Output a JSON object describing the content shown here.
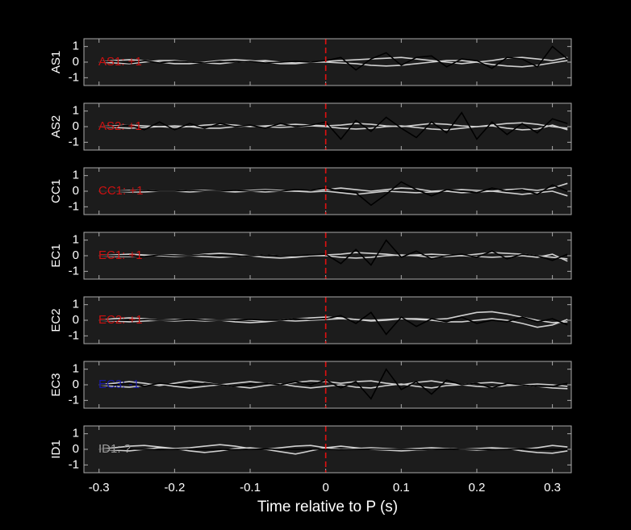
{
  "chart_data": [
    {
      "type": "line",
      "ylabel": "AS1",
      "annotation": "AS1: +1",
      "annotation_color": "#cc1111",
      "pick": 0,
      "x": [
        -0.3,
        -0.28,
        -0.26,
        -0.24,
        -0.22,
        -0.2,
        -0.18,
        -0.16,
        -0.14,
        -0.12,
        -0.1,
        -0.08,
        -0.06,
        -0.04,
        -0.02,
        0,
        0.02,
        0.04,
        0.06,
        0.08,
        0.1,
        0.12,
        0.14,
        0.16,
        0.18,
        0.2,
        0.22,
        0.24,
        0.26,
        0.28,
        0.3,
        0.32
      ],
      "xlim": [
        -0.32,
        0.325
      ],
      "xticks": [
        -0.3,
        -0.2,
        -0.1,
        0,
        0.1,
        0.2,
        0.3
      ],
      "ylim": [
        -1.5,
        1.5
      ],
      "yticks": [
        -1,
        0,
        1
      ],
      "series": [
        {
          "color": "#d0d0d0",
          "values": [
            0,
            0.1,
            0.15,
            0.1,
            0,
            -0.1,
            -0.1,
            0,
            0.1,
            0.15,
            0.1,
            0,
            -0.1,
            -0.1,
            0,
            0.05,
            0.1,
            0.15,
            0.2,
            0.25,
            0.3,
            0.2,
            0.1,
            0,
            -0.1,
            0,
            0.1,
            0.25,
            0.3,
            0.2,
            0.1,
            0.3
          ]
        },
        {
          "color": "#d0d0d0",
          "values": [
            0,
            -0.05,
            -0.1,
            0,
            0.1,
            0.1,
            0,
            -0.05,
            -0.1,
            0,
            0.05,
            0.1,
            0,
            -0.05,
            0,
            0,
            -0.05,
            -0.1,
            -0.2,
            -0.25,
            -0.2,
            -0.1,
            0,
            0.1,
            0.1,
            0,
            -0.15,
            -0.25,
            -0.3,
            -0.2,
            -0.05,
            0.1
          ]
        },
        {
          "color": "#000000",
          "values": [
            0,
            0.05,
            -0.05,
            0.1,
            -0.05,
            0.05,
            0,
            -0.05,
            0.05,
            0,
            0.05,
            -0.05,
            0,
            0.05,
            0,
            0.1,
            0.3,
            -0.5,
            0.2,
            0.6,
            -0.2,
            0.3,
            0.4,
            -0.3,
            0.2,
            0.1,
            -0.4,
            0.3,
            0.2,
            -0.3,
            1,
            0.2
          ]
        }
      ]
    },
    {
      "type": "line",
      "ylabel": "AS2",
      "annotation": "AS2: +1",
      "annotation_color": "#cc1111",
      "pick": 0,
      "x": [
        -0.3,
        -0.28,
        -0.26,
        -0.24,
        -0.22,
        -0.2,
        -0.18,
        -0.16,
        -0.14,
        -0.12,
        -0.1,
        -0.08,
        -0.06,
        -0.04,
        -0.02,
        0,
        0.02,
        0.04,
        0.06,
        0.08,
        0.1,
        0.12,
        0.14,
        0.16,
        0.18,
        0.2,
        0.22,
        0.24,
        0.26,
        0.28,
        0.3,
        0.32
      ],
      "xlim": [
        -0.32,
        0.325
      ],
      "xticks": [
        -0.3,
        -0.2,
        -0.1,
        0,
        0.1,
        0.2,
        0.3
      ],
      "ylim": [
        -1.5,
        1.5
      ],
      "yticks": [
        -1,
        0,
        1
      ],
      "series": [
        {
          "color": "#d0d0d0",
          "values": [
            0,
            0.05,
            0.1,
            0.05,
            0,
            -0.05,
            0,
            0.1,
            0.15,
            0.1,
            0,
            0.05,
            0.1,
            0.15,
            0.1,
            0.05,
            0.1,
            0.2,
            0.15,
            0.05,
            0,
            0.1,
            0.2,
            0.15,
            0.05,
            0,
            0.1,
            0.2,
            0.25,
            0.15,
            0,
            -0.1
          ]
        },
        {
          "color": "#d0d0d0",
          "values": [
            0,
            -0.05,
            -0.1,
            -0.05,
            0,
            0.05,
            0,
            -0.1,
            -0.1,
            0,
            0.05,
            0,
            -0.05,
            0,
            0.05,
            0,
            -0.1,
            -0.15,
            -0.1,
            0,
            0.05,
            -0.05,
            -0.15,
            -0.2,
            -0.1,
            0,
            0.05,
            -0.1,
            -0.2,
            -0.15,
            0.1,
            -0.2
          ]
        },
        {
          "color": "#000000",
          "values": [
            0,
            0,
            0.1,
            -0.2,
            0.3,
            -0.2,
            0.2,
            -0.1,
            0.2,
            0,
            0.1,
            -0.1,
            0.2,
            0,
            0.1,
            0.3,
            -0.8,
            0.4,
            -0.3,
            0.6,
            -0.1,
            -0.7,
            0.3,
            -0.4,
            0.9,
            -0.8,
            0.3,
            -0.5,
            0.2,
            -0.4,
            0.5,
            0.2
          ]
        }
      ]
    },
    {
      "type": "line",
      "ylabel": "CC1",
      "annotation": "CC1: +1",
      "annotation_color": "#cc1111",
      "pick": 0,
      "x": [
        -0.3,
        -0.28,
        -0.26,
        -0.24,
        -0.22,
        -0.2,
        -0.18,
        -0.16,
        -0.14,
        -0.12,
        -0.1,
        -0.08,
        -0.06,
        -0.04,
        -0.02,
        0,
        0.02,
        0.04,
        0.06,
        0.08,
        0.1,
        0.12,
        0.14,
        0.16,
        0.18,
        0.2,
        0.22,
        0.24,
        0.26,
        0.28,
        0.3,
        0.32
      ],
      "xlim": [
        -0.32,
        0.325
      ],
      "xticks": [
        -0.3,
        -0.2,
        -0.1,
        0,
        0.1,
        0.2,
        0.3
      ],
      "ylim": [
        -1.5,
        1.5
      ],
      "yticks": [
        -1,
        0,
        1
      ],
      "series": [
        {
          "color": "#d0d0d0",
          "values": [
            0,
            0,
            0.05,
            0.05,
            0,
            0,
            0.05,
            0.05,
            0,
            0,
            0.05,
            0.1,
            0.05,
            0,
            0.05,
            0.1,
            0.2,
            0.1,
            0,
            0.1,
            0.2,
            0.15,
            0,
            0.05,
            0.1,
            0.05,
            0,
            0.1,
            0.15,
            0.05,
            0.2,
            0.5
          ]
        },
        {
          "color": "#d0d0d0",
          "values": [
            0,
            0,
            -0.05,
            -0.05,
            0,
            0,
            -0.05,
            0,
            0,
            -0.05,
            0,
            -0.05,
            0,
            0,
            -0.05,
            0,
            -0.1,
            -0.2,
            -0.1,
            0,
            -0.05,
            -0.1,
            -0.05,
            0,
            -0.1,
            -0.05,
            0,
            -0.1,
            -0.2,
            -0.1,
            0,
            -0.3
          ]
        },
        {
          "color": "#000000",
          "values": [
            0,
            0,
            0,
            0.05,
            0,
            0,
            0.05,
            0,
            0,
            0.05,
            0,
            0.05,
            0,
            0.1,
            0.05,
            0.2,
            0,
            -0.1,
            -0.9,
            -0.2,
            0.6,
            0.1,
            -0.3,
            0.1,
            0,
            -0.1,
            0.2,
            0,
            0.1,
            -0.2,
            0.4,
            0
          ]
        }
      ]
    },
    {
      "type": "line",
      "ylabel": "EC1",
      "annotation": "EC1: +1",
      "annotation_color": "#cc1111",
      "pick": 0,
      "x": [
        -0.3,
        -0.28,
        -0.26,
        -0.24,
        -0.22,
        -0.2,
        -0.18,
        -0.16,
        -0.14,
        -0.12,
        -0.1,
        -0.08,
        -0.06,
        -0.04,
        -0.02,
        0,
        0.02,
        0.04,
        0.06,
        0.08,
        0.1,
        0.12,
        0.14,
        0.16,
        0.18,
        0.2,
        0.22,
        0.24,
        0.26,
        0.28,
        0.3,
        0.32
      ],
      "xlim": [
        -0.32,
        0.325
      ],
      "xticks": [
        -0.3,
        -0.2,
        -0.1,
        0,
        0.1,
        0.2,
        0.3
      ],
      "ylim": [
        -1.5,
        1.5
      ],
      "yticks": [
        -1,
        0,
        1
      ],
      "series": [
        {
          "color": "#d0d0d0",
          "values": [
            0,
            0.05,
            0.1,
            0.05,
            0,
            -0.05,
            0,
            0.1,
            0.15,
            0.1,
            0,
            -0.1,
            -0.15,
            -0.1,
            0,
            0.05,
            0.1,
            0.2,
            0.15,
            0.1,
            0,
            0.05,
            0.1,
            0.05,
            0,
            0.1,
            0.2,
            0.15,
            0.1,
            0,
            -0.1,
            -0.2
          ]
        },
        {
          "color": "#d0d0d0",
          "values": [
            0,
            -0.05,
            -0.05,
            0,
            0.05,
            0.05,
            0,
            -0.05,
            -0.1,
            -0.05,
            0,
            0.05,
            0,
            -0.05,
            0,
            0,
            -0.1,
            -0.15,
            -0.1,
            0,
            0.05,
            0,
            -0.1,
            -0.05,
            0,
            -0.05,
            -0.1,
            -0.05,
            0,
            -0.1,
            0.1,
            -0.35
          ]
        },
        {
          "color": "#000000",
          "values": [
            0,
            0,
            0,
            -0.05,
            0.05,
            0,
            0,
            0.05,
            0,
            -0.05,
            0,
            0.05,
            0,
            0,
            0.05,
            0.1,
            -0.5,
            0.4,
            -0.6,
            1,
            -0.1,
            0.3,
            -0.2,
            0,
            0.1,
            -0.1,
            0.3,
            -0.2,
            0.1,
            0,
            -0.3,
            0.1
          ]
        }
      ]
    },
    {
      "type": "line",
      "ylabel": "EC2",
      "annotation": "EC2: +1",
      "annotation_color": "#cc1111",
      "pick": 0,
      "x": [
        -0.3,
        -0.28,
        -0.26,
        -0.24,
        -0.22,
        -0.2,
        -0.18,
        -0.16,
        -0.14,
        -0.12,
        -0.1,
        -0.08,
        -0.06,
        -0.04,
        -0.02,
        0,
        0.02,
        0.04,
        0.06,
        0.08,
        0.1,
        0.12,
        0.14,
        0.16,
        0.18,
        0.2,
        0.22,
        0.24,
        0.26,
        0.28,
        0.3,
        0.32
      ],
      "xlim": [
        -0.32,
        0.325
      ],
      "xticks": [
        -0.3,
        -0.2,
        -0.1,
        0,
        0.1,
        0.2,
        0.3
      ],
      "ylim": [
        -1.5,
        1.5
      ],
      "yticks": [
        -1,
        0,
        1
      ],
      "series": [
        {
          "color": "#d0d0d0",
          "values": [
            0,
            0.1,
            0.15,
            0.1,
            0,
            -0.05,
            0,
            0.05,
            0,
            -0.1,
            -0.15,
            -0.1,
            0,
            0.1,
            0.15,
            0.2,
            0.15,
            0.05,
            0,
            0.05,
            0.1,
            0.1,
            0.05,
            0.1,
            0.3,
            0.5,
            0.55,
            0.4,
            0.2,
            0,
            -0.15,
            -0.1
          ]
        },
        {
          "color": "#d0d0d0",
          "values": [
            0,
            -0.05,
            -0.1,
            -0.05,
            0,
            0.05,
            0,
            -0.05,
            0,
            0.05,
            0,
            -0.05,
            0,
            -0.05,
            0,
            0.05,
            0.1,
            0.05,
            -0.05,
            0,
            0.1,
            0.05,
            0,
            -0.1,
            -0.1,
            0,
            0.1,
            0,
            -0.2,
            -0.45,
            -0.3,
            0.05
          ]
        },
        {
          "color": "#000000",
          "values": [
            0,
            0,
            0,
            0.05,
            0,
            0,
            0.05,
            0,
            0,
            0,
            0.05,
            0,
            0,
            0.1,
            0.05,
            0.1,
            0.3,
            -0.2,
            0.5,
            -0.9,
            0.2,
            -0.4,
            0.1,
            -0.1,
            0.2,
            -0.2,
            0,
            -0.1,
            0.2,
            -0.1,
            0.1,
            -0.3
          ]
        }
      ]
    },
    {
      "type": "line",
      "ylabel": "EC3",
      "annotation": "EC3: -1",
      "annotation_color": "#1a1aa6",
      "pick": 0,
      "x": [
        -0.3,
        -0.28,
        -0.26,
        -0.24,
        -0.22,
        -0.2,
        -0.18,
        -0.16,
        -0.14,
        -0.12,
        -0.1,
        -0.08,
        -0.06,
        -0.04,
        -0.02,
        0,
        0.02,
        0.04,
        0.06,
        0.08,
        0.1,
        0.12,
        0.14,
        0.16,
        0.18,
        0.2,
        0.22,
        0.24,
        0.26,
        0.28,
        0.3,
        0.32
      ],
      "xlim": [
        -0.32,
        0.325
      ],
      "xticks": [
        -0.3,
        -0.2,
        -0.1,
        0,
        0.1,
        0.2,
        0.3
      ],
      "ylim": [
        -1.5,
        1.5
      ],
      "yticks": [
        -1,
        0,
        1
      ],
      "series": [
        {
          "color": "#d0d0d0",
          "values": [
            0,
            0.1,
            0.2,
            0.1,
            -0.05,
            0.1,
            0.25,
            0.15,
            0,
            0.1,
            0.2,
            0.1,
            0,
            0.15,
            0.25,
            0.2,
            0.1,
            0.2,
            0.25,
            0.1,
            0,
            0.15,
            0.25,
            0.1,
            0,
            0.1,
            0.15,
            0.05,
            0,
            0.05,
            0,
            -0.1
          ]
        },
        {
          "color": "#d0d0d0",
          "values": [
            0,
            -0.1,
            -0.15,
            -0.05,
            0.05,
            -0.1,
            -0.2,
            -0.1,
            0,
            -0.1,
            -0.2,
            -0.05,
            0.05,
            -0.1,
            -0.2,
            -0.1,
            0,
            -0.15,
            -0.2,
            -0.05,
            0.05,
            -0.1,
            -0.2,
            -0.05,
            0,
            -0.1,
            -0.15,
            -0.05,
            0,
            -0.1,
            -0.2,
            -0.25
          ]
        },
        {
          "color": "#000000",
          "values": [
            0,
            0,
            0.1,
            -0.1,
            0.1,
            0,
            -0.05,
            0.1,
            0,
            -0.1,
            0.05,
            0.1,
            0,
            0.2,
            0,
            0.3,
            -0.2,
            0.2,
            -0.9,
            1,
            -0.3,
            0.2,
            -0.6,
            0.3,
            0,
            0.1,
            -0.2,
            0.1,
            0,
            -0.1,
            -0.1,
            0.1
          ]
        }
      ]
    },
    {
      "type": "line",
      "ylabel": "ID1",
      "annotation": "ID1: ?",
      "annotation_color": "#9a9a9a",
      "pick": 0,
      "x": [
        -0.3,
        -0.28,
        -0.26,
        -0.24,
        -0.22,
        -0.2,
        -0.18,
        -0.16,
        -0.14,
        -0.12,
        -0.1,
        -0.08,
        -0.06,
        -0.04,
        -0.02,
        0,
        0.02,
        0.04,
        0.06,
        0.08,
        0.1,
        0.12,
        0.14,
        0.16,
        0.18,
        0.2,
        0.22,
        0.24,
        0.26,
        0.28,
        0.3,
        0.32
      ],
      "xlim": [
        -0.32,
        0.325
      ],
      "xticks": [
        -0.3,
        -0.2,
        -0.1,
        0,
        0.1,
        0.2,
        0.3
      ],
      "ylim": [
        -1.5,
        1.5
      ],
      "yticks": [
        -1,
        0,
        1
      ],
      "xlabel": "Time relative to P (s)",
      "series": [
        {
          "color": "#d0d0d0",
          "values": [
            0,
            0.1,
            0.2,
            0.25,
            0.15,
            0.05,
            0.1,
            0.2,
            0.3,
            0.2,
            0.05,
            0,
            0.1,
            0.2,
            0.25,
            0.1,
            0,
            0.05,
            0.1,
            0.05,
            0,
            0.05,
            0.1,
            0.05,
            0,
            0.05,
            0.1,
            0.05,
            0,
            0.1,
            0.25,
            0.15
          ]
        },
        {
          "color": "#d0d0d0",
          "values": [
            0,
            -0.05,
            -0.1,
            0,
            0.1,
            0.05,
            -0.1,
            -0.2,
            -0.1,
            0.05,
            0.1,
            0,
            -0.15,
            -0.3,
            -0.1,
            0.1,
            0.2,
            0.1,
            0,
            -0.05,
            -0.1,
            -0.05,
            0,
            0.05,
            0,
            -0.05,
            0,
            0.05,
            -0.1,
            -0.2,
            -0.25,
            -0.1
          ]
        },
        {
          "color": "#000000",
          "values": [
            0,
            0,
            0.02,
            0,
            -0.02,
            0,
            0.02,
            0,
            0,
            -0.02,
            0,
            0.02,
            0,
            0,
            0.02,
            0,
            -0.02,
            0,
            0.02,
            0,
            0,
            -0.02,
            0,
            0.02,
            0,
            0,
            -0.02,
            0,
            0.02,
            0,
            0,
            0
          ]
        }
      ]
    }
  ]
}
